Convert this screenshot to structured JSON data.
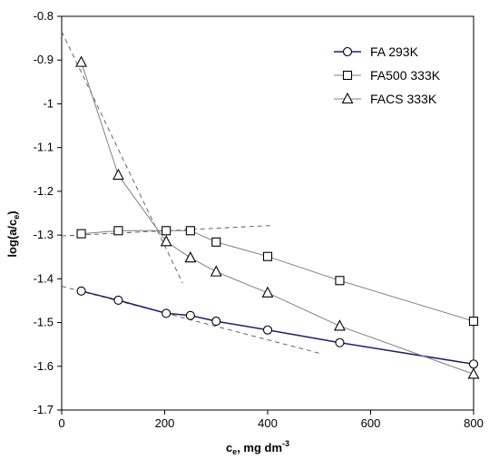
{
  "chart_data": {
    "type": "line",
    "title": "",
    "xlabel": "c",
    "xlabel_sub": "e",
    "xlabel_rest": ", mg dm",
    "xlabel_sup": "-3",
    "ylabel": "log(a/c",
    "ylabel_sub": "e",
    "ylabel_end": ")",
    "xlim": [
      0,
      800
    ],
    "ylim": [
      -1.7,
      -0.8
    ],
    "xticks": [
      0,
      200,
      400,
      600,
      800
    ],
    "yticks": [
      -0.8,
      -0.9,
      -1,
      -1.1,
      -1.2,
      -1.3,
      -1.4,
      -1.5,
      -1.6,
      -1.7
    ],
    "xtick_labels": [
      "0",
      "200",
      "400",
      "600",
      "800"
    ],
    "ytick_labels": [
      "-0.8",
      "-0.9",
      "-1",
      "-1.1",
      "-1.2",
      "-1.3",
      "-1.4",
      "-1.5",
      "-1.6",
      "-1.7"
    ],
    "grid": false,
    "legend_position": "top-right",
    "series": [
      {
        "name": "FA 293K",
        "marker": "circle",
        "color": "#1f1f6e",
        "points": [
          [
            38,
            -1.428
          ],
          [
            110,
            -1.449
          ],
          [
            203,
            -1.479
          ],
          [
            250,
            -1.484
          ],
          [
            300,
            -1.497
          ],
          [
            400,
            -1.517
          ],
          [
            540,
            -1.546
          ],
          [
            800,
            -1.595
          ]
        ]
      },
      {
        "name": "FA500 333K",
        "marker": "square",
        "color": "#7f7f7f",
        "points": [
          [
            38,
            -1.297
          ],
          [
            110,
            -1.29
          ],
          [
            203,
            -1.29
          ],
          [
            250,
            -1.29
          ],
          [
            300,
            -1.316
          ],
          [
            400,
            -1.349
          ],
          [
            540,
            -1.404
          ],
          [
            800,
            -1.497
          ]
        ]
      },
      {
        "name": "FACS 333K",
        "marker": "triangle",
        "color": "#7f7f7f",
        "points": [
          [
            38,
            -0.905
          ],
          [
            110,
            -1.163
          ],
          [
            203,
            -1.315
          ],
          [
            250,
            -1.352
          ],
          [
            300,
            -1.384
          ],
          [
            400,
            -1.432
          ],
          [
            540,
            -1.508
          ],
          [
            800,
            -1.618
          ]
        ]
      }
    ],
    "trendlines": [
      {
        "points": [
          [
            0,
            -0.835
          ],
          [
            235,
            -1.41
          ]
        ]
      },
      {
        "points": [
          [
            0,
            -1.302
          ],
          [
            410,
            -1.278
          ]
        ]
      },
      {
        "points": [
          [
            0,
            -1.417
          ],
          [
            500,
            -1.57
          ]
        ]
      }
    ]
  }
}
